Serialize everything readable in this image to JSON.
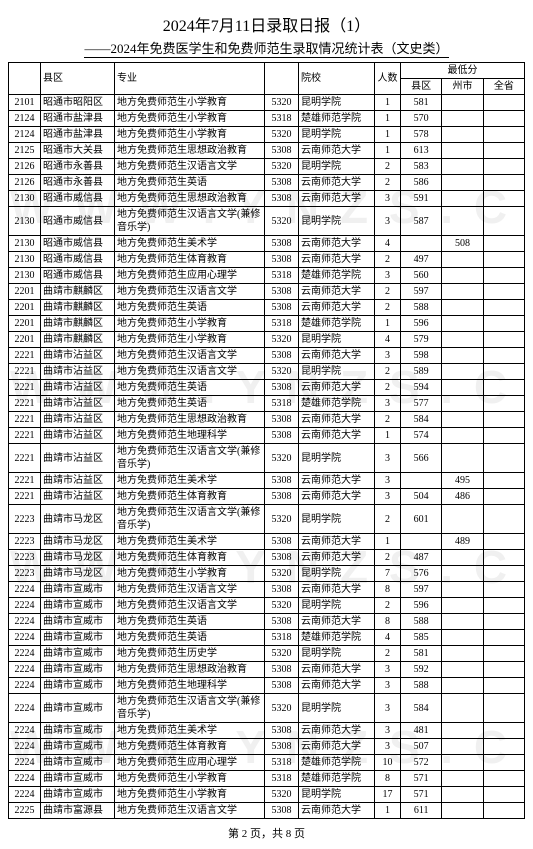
{
  "title1": "2024年7月11日录取日报（1）",
  "title2": "——2024年免费医学生和免费师范生录取情况统计表（文史类）",
  "headers": {
    "county": "县区",
    "major": "专业",
    "school": "院校",
    "num": "人数",
    "score_group": "最低分",
    "s1": "县区",
    "s2": "州市",
    "s3": "全省"
  },
  "footer_prefix": "第 ",
  "footer_page": "2",
  "footer_mid": " 页，共 ",
  "footer_total": "8",
  "footer_suffix": " 页",
  "watermark_text": "W W W . Y N Z S . C",
  "rows": [
    {
      "code": "2101",
      "county": "昭通市昭阳区",
      "major": "地方免费师范生小学教育",
      "scode": "5320",
      "school": "昆明学院",
      "num": "1",
      "s1": "581",
      "s2": "",
      "s3": ""
    },
    {
      "code": "2124",
      "county": "昭通市盐津县",
      "major": "地方免费师范生小学教育",
      "scode": "5318",
      "school": "楚雄师范学院",
      "num": "1",
      "s1": "570",
      "s2": "",
      "s3": ""
    },
    {
      "code": "2124",
      "county": "昭通市盐津县",
      "major": "地方免费师范生小学教育",
      "scode": "5320",
      "school": "昆明学院",
      "num": "1",
      "s1": "578",
      "s2": "",
      "s3": ""
    },
    {
      "code": "2125",
      "county": "昭通市大关县",
      "major": "地方免费师范生思想政治教育",
      "scode": "5308",
      "school": "云南师范大学",
      "num": "1",
      "s1": "613",
      "s2": "",
      "s3": ""
    },
    {
      "code": "2126",
      "county": "昭通市永善县",
      "major": "地方免费师范生汉语言文学",
      "scode": "5320",
      "school": "昆明学院",
      "num": "2",
      "s1": "583",
      "s2": "",
      "s3": ""
    },
    {
      "code": "2126",
      "county": "昭通市永善县",
      "major": "地方免费师范生英语",
      "scode": "5308",
      "school": "云南师范大学",
      "num": "2",
      "s1": "586",
      "s2": "",
      "s3": ""
    },
    {
      "code": "2130",
      "county": "昭通市威信县",
      "major": "地方免费师范生思想政治教育",
      "scode": "5308",
      "school": "云南师范大学",
      "num": "3",
      "s1": "591",
      "s2": "",
      "s3": ""
    },
    {
      "code": "2130",
      "county": "昭通市威信县",
      "major": "地方免费师范生汉语言文学(兼修音乐学)",
      "scode": "5320",
      "school": "昆明学院",
      "num": "3",
      "s1": "587",
      "s2": "",
      "s3": ""
    },
    {
      "code": "2130",
      "county": "昭通市威信县",
      "major": "地方免费师范生美术学",
      "scode": "5308",
      "school": "云南师范大学",
      "num": "4",
      "s1": "",
      "s2": "508",
      "s3": ""
    },
    {
      "code": "2130",
      "county": "昭通市威信县",
      "major": "地方免费师范生体育教育",
      "scode": "5308",
      "school": "云南师范大学",
      "num": "2",
      "s1": "497",
      "s2": "",
      "s3": ""
    },
    {
      "code": "2130",
      "county": "昭通市威信县",
      "major": "地方免费师范生应用心理学",
      "scode": "5318",
      "school": "楚雄师范学院",
      "num": "3",
      "s1": "560",
      "s2": "",
      "s3": ""
    },
    {
      "code": "2201",
      "county": "曲靖市麒麟区",
      "major": "地方免费师范生汉语言文学",
      "scode": "5308",
      "school": "云南师范大学",
      "num": "2",
      "s1": "597",
      "s2": "",
      "s3": ""
    },
    {
      "code": "2201",
      "county": "曲靖市麒麟区",
      "major": "地方免费师范生英语",
      "scode": "5308",
      "school": "云南师范大学",
      "num": "2",
      "s1": "588",
      "s2": "",
      "s3": ""
    },
    {
      "code": "2201",
      "county": "曲靖市麒麟区",
      "major": "地方免费师范生小学教育",
      "scode": "5318",
      "school": "楚雄师范学院",
      "num": "1",
      "s1": "596",
      "s2": "",
      "s3": ""
    },
    {
      "code": "2201",
      "county": "曲靖市麒麟区",
      "major": "地方免费师范生小学教育",
      "scode": "5320",
      "school": "昆明学院",
      "num": "4",
      "s1": "579",
      "s2": "",
      "s3": ""
    },
    {
      "code": "2221",
      "county": "曲靖市沾益区",
      "major": "地方免费师范生汉语言文学",
      "scode": "5308",
      "school": "云南师范大学",
      "num": "3",
      "s1": "598",
      "s2": "",
      "s3": ""
    },
    {
      "code": "2221",
      "county": "曲靖市沾益区",
      "major": "地方免费师范生汉语言文学",
      "scode": "5320",
      "school": "昆明学院",
      "num": "2",
      "s1": "589",
      "s2": "",
      "s3": ""
    },
    {
      "code": "2221",
      "county": "曲靖市沾益区",
      "major": "地方免费师范生英语",
      "scode": "5308",
      "school": "云南师范大学",
      "num": "2",
      "s1": "594",
      "s2": "",
      "s3": ""
    },
    {
      "code": "2221",
      "county": "曲靖市沾益区",
      "major": "地方免费师范生英语",
      "scode": "5318",
      "school": "楚雄师范学院",
      "num": "3",
      "s1": "577",
      "s2": "",
      "s3": ""
    },
    {
      "code": "2221",
      "county": "曲靖市沾益区",
      "major": "地方免费师范生思想政治教育",
      "scode": "5308",
      "school": "云南师范大学",
      "num": "2",
      "s1": "584",
      "s2": "",
      "s3": ""
    },
    {
      "code": "2221",
      "county": "曲靖市沾益区",
      "major": "地方免费师范生地理科学",
      "scode": "5308",
      "school": "云南师范大学",
      "num": "1",
      "s1": "574",
      "s2": "",
      "s3": ""
    },
    {
      "code": "2221",
      "county": "曲靖市沾益区",
      "major": "地方免费师范生汉语言文学(兼修音乐学)",
      "scode": "5320",
      "school": "昆明学院",
      "num": "3",
      "s1": "566",
      "s2": "",
      "s3": ""
    },
    {
      "code": "2221",
      "county": "曲靖市沾益区",
      "major": "地方免费师范生美术学",
      "scode": "5308",
      "school": "云南师范大学",
      "num": "3",
      "s1": "",
      "s2": "495",
      "s3": ""
    },
    {
      "code": "2221",
      "county": "曲靖市沾益区",
      "major": "地方免费师范生体育教育",
      "scode": "5308",
      "school": "云南师范大学",
      "num": "3",
      "s1": "504",
      "s2": "486",
      "s3": ""
    },
    {
      "code": "2223",
      "county": "曲靖市马龙区",
      "major": "地方免费师范生汉语言文学(兼修音乐学)",
      "scode": "5320",
      "school": "昆明学院",
      "num": "2",
      "s1": "601",
      "s2": "",
      "s3": ""
    },
    {
      "code": "2223",
      "county": "曲靖市马龙区",
      "major": "地方免费师范生美术学",
      "scode": "5308",
      "school": "云南师范大学",
      "num": "1",
      "s1": "",
      "s2": "489",
      "s3": ""
    },
    {
      "code": "2223",
      "county": "曲靖市马龙区",
      "major": "地方免费师范生体育教育",
      "scode": "5308",
      "school": "云南师范大学",
      "num": "2",
      "s1": "487",
      "s2": "",
      "s3": ""
    },
    {
      "code": "2223",
      "county": "曲靖市马龙区",
      "major": "地方免费师范生小学教育",
      "scode": "5320",
      "school": "昆明学院",
      "num": "7",
      "s1": "576",
      "s2": "",
      "s3": ""
    },
    {
      "code": "2224",
      "county": "曲靖市宣威市",
      "major": "地方免费师范生汉语言文学",
      "scode": "5308",
      "school": "云南师范大学",
      "num": "8",
      "s1": "597",
      "s2": "",
      "s3": ""
    },
    {
      "code": "2224",
      "county": "曲靖市宣威市",
      "major": "地方免费师范生汉语言文学",
      "scode": "5320",
      "school": "昆明学院",
      "num": "2",
      "s1": "596",
      "s2": "",
      "s3": ""
    },
    {
      "code": "2224",
      "county": "曲靖市宣威市",
      "major": "地方免费师范生英语",
      "scode": "5308",
      "school": "云南师范大学",
      "num": "8",
      "s1": "588",
      "s2": "",
      "s3": ""
    },
    {
      "code": "2224",
      "county": "曲靖市宣威市",
      "major": "地方免费师范生英语",
      "scode": "5318",
      "school": "楚雄师范学院",
      "num": "4",
      "s1": "585",
      "s2": "",
      "s3": ""
    },
    {
      "code": "2224",
      "county": "曲靖市宣威市",
      "major": "地方免费师范生历史学",
      "scode": "5320",
      "school": "昆明学院",
      "num": "2",
      "s1": "581",
      "s2": "",
      "s3": ""
    },
    {
      "code": "2224",
      "county": "曲靖市宣威市",
      "major": "地方免费师范生思想政治教育",
      "scode": "5308",
      "school": "云南师范大学",
      "num": "3",
      "s1": "592",
      "s2": "",
      "s3": ""
    },
    {
      "code": "2224",
      "county": "曲靖市宣威市",
      "major": "地方免费师范生地理科学",
      "scode": "5308",
      "school": "云南师范大学",
      "num": "3",
      "s1": "588",
      "s2": "",
      "s3": ""
    },
    {
      "code": "2224",
      "county": "曲靖市宣威市",
      "major": "地方免费师范生汉语言文学(兼修音乐学)",
      "scode": "5320",
      "school": "昆明学院",
      "num": "3",
      "s1": "584",
      "s2": "",
      "s3": ""
    },
    {
      "code": "2224",
      "county": "曲靖市宣威市",
      "major": "地方免费师范生美术学",
      "scode": "5308",
      "school": "云南师范大学",
      "num": "3",
      "s1": "481",
      "s2": "",
      "s3": ""
    },
    {
      "code": "2224",
      "county": "曲靖市宣威市",
      "major": "地方免费师范生体育教育",
      "scode": "5308",
      "school": "云南师范大学",
      "num": "3",
      "s1": "507",
      "s2": "",
      "s3": ""
    },
    {
      "code": "2224",
      "county": "曲靖市宣威市",
      "major": "地方免费师范生应用心理学",
      "scode": "5318",
      "school": "楚雄师范学院",
      "num": "10",
      "s1": "572",
      "s2": "",
      "s3": ""
    },
    {
      "code": "2224",
      "county": "曲靖市宣威市",
      "major": "地方免费师范生小学教育",
      "scode": "5318",
      "school": "楚雄师范学院",
      "num": "8",
      "s1": "571",
      "s2": "",
      "s3": ""
    },
    {
      "code": "2224",
      "county": "曲靖市宣威市",
      "major": "地方免费师范生小学教育",
      "scode": "5320",
      "school": "昆明学院",
      "num": "17",
      "s1": "571",
      "s2": "",
      "s3": ""
    },
    {
      "code": "2225",
      "county": "曲靖市富源县",
      "major": "地方免费师范生汉语言文学",
      "scode": "5308",
      "school": "云南师范大学",
      "num": "1",
      "s1": "611",
      "s2": "",
      "s3": ""
    }
  ]
}
